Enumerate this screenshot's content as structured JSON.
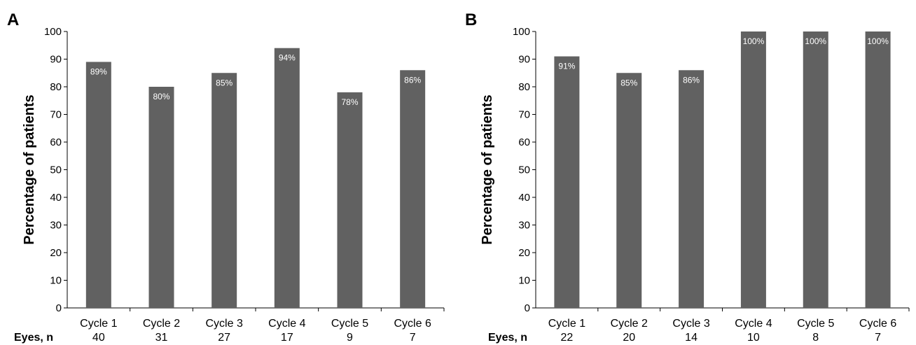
{
  "chart_data": [
    {
      "type": "bar",
      "panel_label": "A",
      "ylabel": "Percentage of patients",
      "ylim": [
        0,
        100
      ],
      "yticks": [
        0,
        10,
        20,
        30,
        40,
        50,
        60,
        70,
        80,
        90,
        100
      ],
      "categories": [
        "Cycle 1",
        "Cycle 2",
        "Cycle 3",
        "Cycle 4",
        "Cycle 5",
        "Cycle 6"
      ],
      "values": [
        89,
        80,
        85,
        94,
        78,
        86
      ],
      "data_labels": [
        "89%",
        "80%",
        "85%",
        "94%",
        "78%",
        "86%"
      ],
      "count_row_label": "Eyes, n",
      "counts": [
        "40",
        "31",
        "27",
        "17",
        "9",
        "7"
      ],
      "bar_color": "#616161",
      "grid": false
    },
    {
      "type": "bar",
      "panel_label": "B",
      "ylabel": "Percentage of patients",
      "ylim": [
        0,
        100
      ],
      "yticks": [
        0,
        10,
        20,
        30,
        40,
        50,
        60,
        70,
        80,
        90,
        100
      ],
      "categories": [
        "Cycle 1",
        "Cycle 2",
        "Cycle 3",
        "Cycle 4",
        "Cycle 5",
        "Cycle 6"
      ],
      "values": [
        91,
        85,
        86,
        100,
        100,
        100
      ],
      "data_labels": [
        "91%",
        "85%",
        "86%",
        "100%",
        "100%",
        "100%"
      ],
      "count_row_label": "Eyes, n",
      "counts": [
        "22",
        "20",
        "14",
        "10",
        "8",
        "7"
      ],
      "bar_color": "#616161",
      "grid": false
    }
  ]
}
